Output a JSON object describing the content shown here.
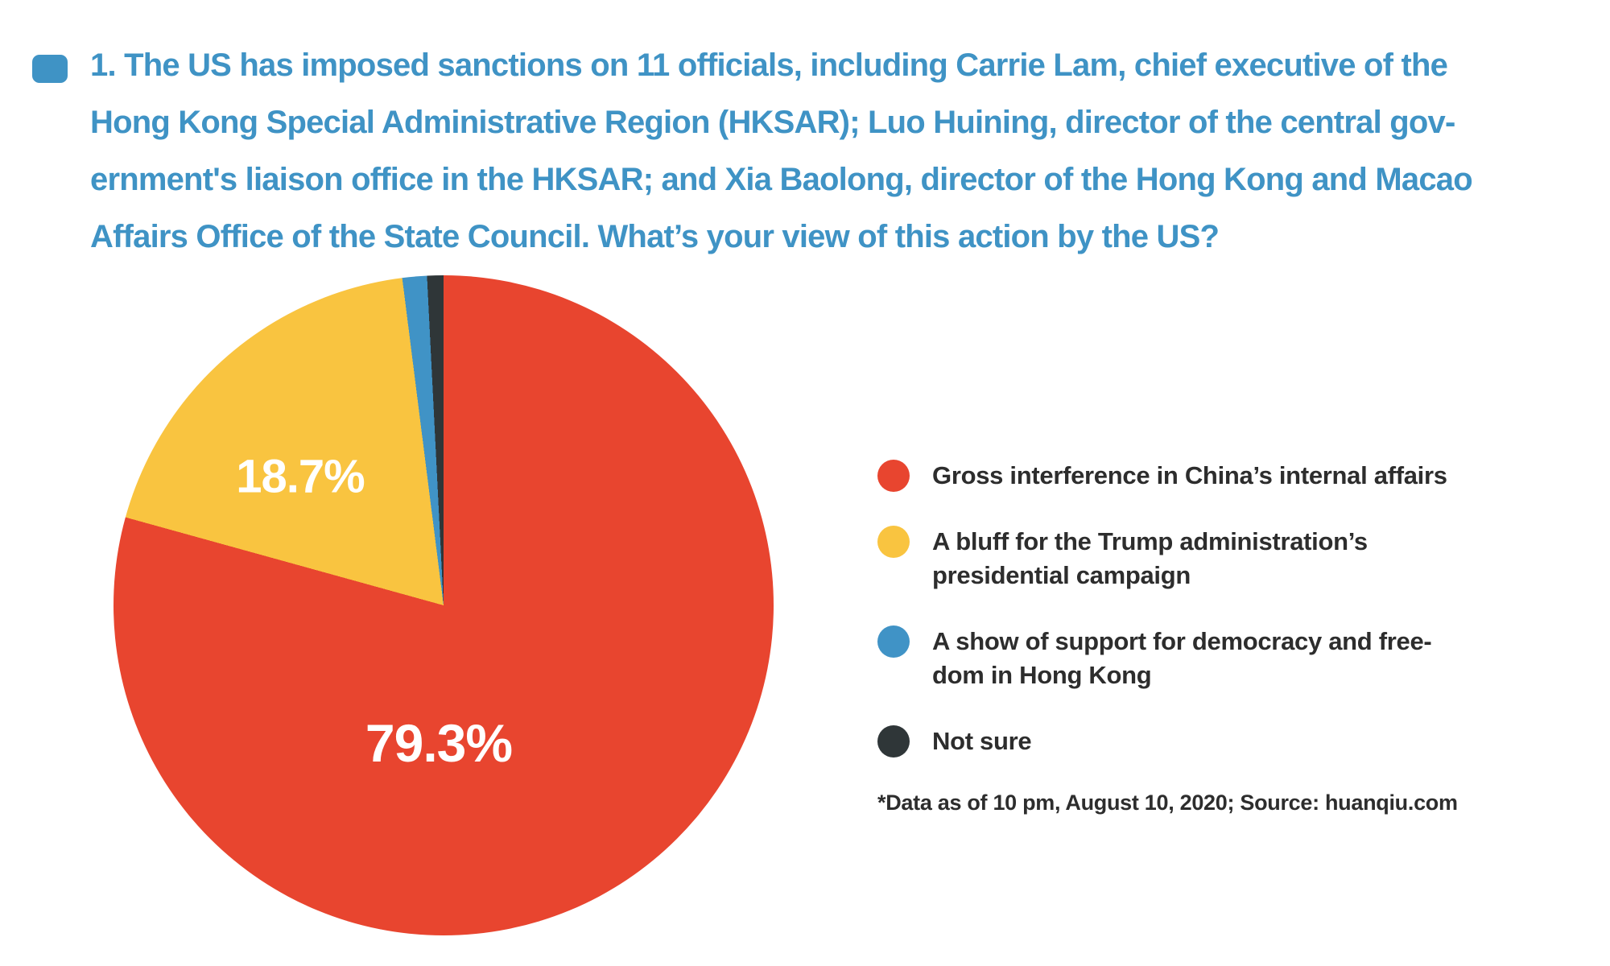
{
  "title": {
    "lines": [
      "1. The US has imposed sanctions on 11 officials, including Carrie Lam, chief executive of the",
      "Hong Kong Special Administrative Region (HKSAR); Luo Huining, director of the central gov-",
      "ernment's liaison office in the HKSAR; and Xia Baolong, director of the Hong Kong and Macao",
      "Affairs Office of the State Council. What’s your view of this action by the US?"
    ]
  },
  "chart_data": {
    "type": "pie",
    "title": "1. The US has imposed sanctions on 11 officials, including Carrie Lam, chief executive of the Hong Kong Special Administrative Region (HKSAR); Luo Huining, director of the central government's liaison office in the HKSAR; and Xia Baolong, director of the Hong Kong and Macao Affairs Office of the State Council. What’s your view of this action by the US?",
    "unit": "%",
    "start_angle_deg": 0,
    "direction": "clockwise",
    "legend_position": "right",
    "slices": [
      {
        "label": "Gross interference in China’s internal affairs",
        "value": 79.3,
        "pct_label": "79.3%",
        "color": "#e8452f"
      },
      {
        "label": "A bluff for the Trump administration’s presidential campaign",
        "value": 18.7,
        "pct_label": "18.7%",
        "color": "#f9c440"
      },
      {
        "label": "A show of support for democracy and freedom in Hong Kong",
        "value": 1.2,
        "pct_label": "",
        "color": "#4093c6"
      },
      {
        "label": "Not sure",
        "value": 0.8,
        "pct_label": "",
        "color": "#2f3638"
      }
    ],
    "source_note": "*Data as of 10 pm, August 10, 2020; Source: huanqiu.com"
  },
  "legend": {
    "items": [
      {
        "text": "Gross interference in China’s internal affairs"
      },
      {
        "text": "A bluff for the Trump administration’s\npresidential campaign"
      },
      {
        "text": "A show of support for democracy and free-\ndom in Hong Kong"
      },
      {
        "text": "Not sure"
      }
    ],
    "footnote": "*Data as of 10 pm, August 10, 2020; Source: huanqiu.com"
  },
  "colors": {
    "accent_blue": "#3f93c5",
    "slice_red": "#e8452f",
    "slice_yellow": "#f9c440",
    "slice_blue": "#4093c6",
    "slice_dark": "#2f3638",
    "text_dark": "#2d2d2d",
    "background": "#ffffff"
  }
}
